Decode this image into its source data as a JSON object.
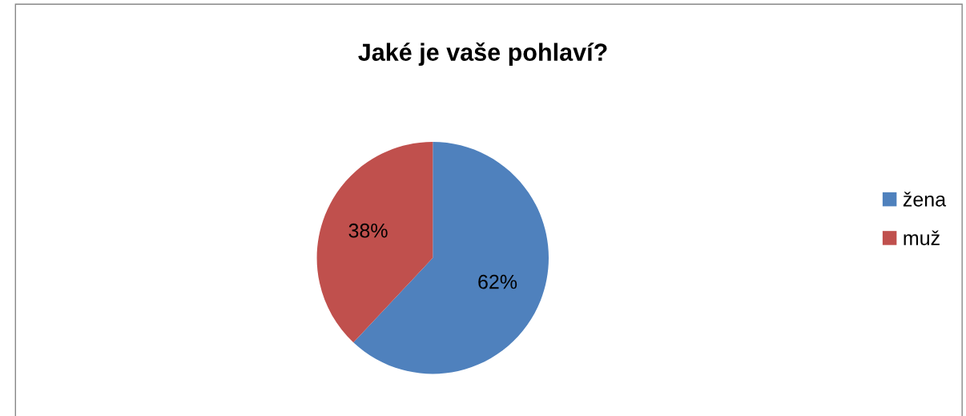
{
  "chart_data": {
    "type": "pie",
    "title": "Jaké je vaše pohlaví?",
    "categories": [
      "žena",
      "muž"
    ],
    "values": [
      62,
      38
    ],
    "value_labels": [
      "62%",
      "38%"
    ],
    "colors": [
      "#4f81bd",
      "#c0504d"
    ],
    "legend": "right"
  }
}
